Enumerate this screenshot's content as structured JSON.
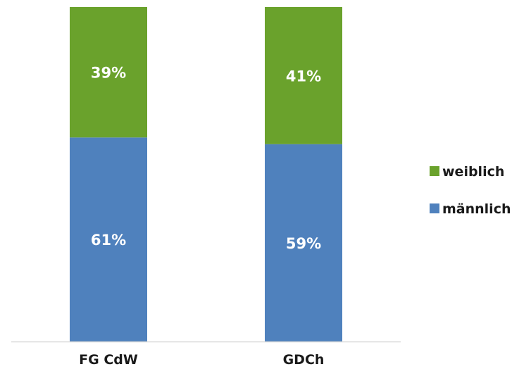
{
  "chart_data": {
    "type": "bar",
    "stacked": true,
    "percent": true,
    "categories": [
      "FG CdW",
      "GDCh"
    ],
    "series": [
      {
        "name": "männlich",
        "values": [
          61,
          59
        ],
        "labels": [
          "61%",
          "59%"
        ],
        "color": "#4f81bd"
      },
      {
        "name": "weiblich",
        "values": [
          39,
          41
        ],
        "labels": [
          "39%",
          "41%"
        ],
        "color": "#6aa22c"
      }
    ],
    "legend_order": [
      "weiblich",
      "männlich"
    ],
    "legend_position": "right",
    "ylim": [
      0,
      100
    ],
    "grid": false,
    "axis_color": "#d9d9d9"
  }
}
